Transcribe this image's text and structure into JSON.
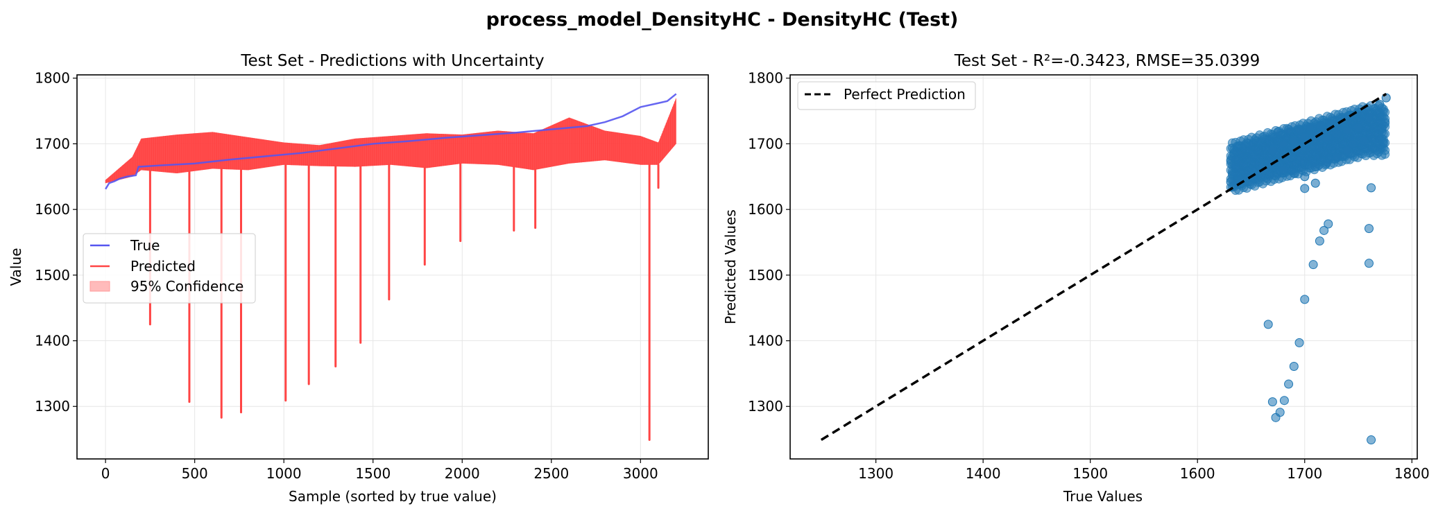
{
  "figure_title": "process_model_DensityHC - DensityHC (Test)",
  "chart_data": [
    {
      "type": "line",
      "title": "Test Set - Predictions with Uncertainty",
      "xlabel": "Sample (sorted by true value)",
      "ylabel": "Value",
      "xlim": [
        -160,
        3380
      ],
      "ylim": [
        1220,
        1805
      ],
      "xticks": [
        0,
        500,
        1000,
        1500,
        2000,
        2500,
        3000
      ],
      "yticks": [
        1300,
        1400,
        1500,
        1600,
        1700,
        1800
      ],
      "grid": true,
      "legend_position": "center-left",
      "n_samples": 3200,
      "series": [
        {
          "name": "True",
          "color": "#5555f0",
          "x": [
            0,
            20,
            50,
            80,
            120,
            170,
            185,
            300,
            500,
            700,
            900,
            1100,
            1300,
            1500,
            1700,
            1900,
            2100,
            2300,
            2500,
            2700,
            2800,
            2900,
            3000,
            3100,
            3150,
            3200
          ],
          "y": [
            1631,
            1640,
            1643,
            1647,
            1650,
            1652,
            1665,
            1667,
            1670,
            1676,
            1681,
            1686,
            1693,
            1700,
            1704,
            1709,
            1713,
            1717,
            1722,
            1727,
            1733,
            1742,
            1756,
            1762,
            1765,
            1776
          ]
        },
        {
          "name": "Predicted",
          "color": "#ff4444",
          "band_low": {
            "x": [
              0,
              150,
              200,
              400,
              600,
              800,
              1000,
              1200,
              1400,
              1600,
              1800,
              2000,
              2200,
              2400,
              2600,
              2800,
              3000,
              3100,
              3200
            ],
            "y": [
              1640,
              1650,
              1660,
              1655,
              1662,
              1660,
              1668,
              1666,
              1665,
              1668,
              1663,
              1670,
              1668,
              1660,
              1670,
              1675,
              1668,
              1668,
              1700
            ]
          },
          "band_high": {
            "x": [
              0,
              150,
              200,
              400,
              600,
              800,
              1000,
              1200,
              1400,
              1600,
              1800,
              2000,
              2200,
              2400,
              2600,
              2800,
              3000,
              3100,
              3200
            ],
            "y": [
              1645,
              1680,
              1708,
              1714,
              1718,
              1710,
              1702,
              1698,
              1708,
              1712,
              1716,
              1714,
              1720,
              1716,
              1740,
              1720,
              1712,
              1702,
              1770
            ]
          },
          "spikes": [
            {
              "x": 250,
              "y": 1425
            },
            {
              "x": 470,
              "y": 1307
            },
            {
              "x": 650,
              "y": 1283
            },
            {
              "x": 760,
              "y": 1291
            },
            {
              "x": 1010,
              "y": 1309
            },
            {
              "x": 1140,
              "y": 1334
            },
            {
              "x": 1290,
              "y": 1361
            },
            {
              "x": 1430,
              "y": 1397
            },
            {
              "x": 1590,
              "y": 1463
            },
            {
              "x": 1790,
              "y": 1516
            },
            {
              "x": 1990,
              "y": 1552
            },
            {
              "x": 2290,
              "y": 1568
            },
            {
              "x": 2410,
              "y": 1572
            },
            {
              "x": 3050,
              "y": 1249
            },
            {
              "x": 3100,
              "y": 1633
            }
          ]
        },
        {
          "name": "95% Confidence",
          "color": "#ffbbbb"
        }
      ]
    },
    {
      "type": "scatter",
      "title": "Test Set - R²=-0.3423, RMSE=35.0399",
      "xlabel": "True Values",
      "ylabel": "Predicted Values",
      "xlim": [
        1220,
        1805
      ],
      "ylim": [
        1220,
        1805
      ],
      "xticks": [
        1300,
        1400,
        1500,
        1600,
        1700,
        1800
      ],
      "yticks": [
        1300,
        1400,
        1500,
        1600,
        1700,
        1800
      ],
      "grid": true,
      "legend_position": "top-left",
      "reference_line": {
        "name": "Perfect Prediction",
        "color": "#000000",
        "x": [
          1249,
          1776
        ],
        "y": [
          1249,
          1776
        ]
      },
      "point_color": "#1f77b4",
      "cluster": {
        "x": [
          1631,
          1640,
          1650,
          1660,
          1668,
          1670,
          1680,
          1690,
          1700,
          1710,
          1720,
          1730,
          1740,
          1750,
          1760,
          1770,
          1776,
          1680,
          1690,
          1700,
          1710,
          1720,
          1730,
          1740,
          1675,
          1685,
          1695,
          1705,
          1715,
          1725,
          1735,
          1745,
          1755,
          1700,
          1710
        ],
        "y": [
          1642,
          1645,
          1650,
          1662,
          1672,
          1690,
          1700,
          1705,
          1710,
          1712,
          1708,
          1715,
          1720,
          1725,
          1740,
          1760,
          1770,
          1660,
          1655,
          1650,
          1665,
          1670,
          1680,
          1690,
          1718,
          1722,
          1720,
          1725,
          1728,
          1730,
          1735,
          1700,
          1705,
          1632,
          1640
        ]
      },
      "outliers": {
        "x": [
          1666,
          1670,
          1673,
          1677,
          1681,
          1685,
          1690,
          1695,
          1700,
          1708,
          1714,
          1718,
          1722,
          1760,
          1762,
          1760,
          1762
        ],
        "y": [
          1425,
          1307,
          1283,
          1291,
          1309,
          1334,
          1361,
          1397,
          1463,
          1516,
          1552,
          1568,
          1578,
          1518,
          1633,
          1571,
          1249
        ]
      }
    }
  ]
}
